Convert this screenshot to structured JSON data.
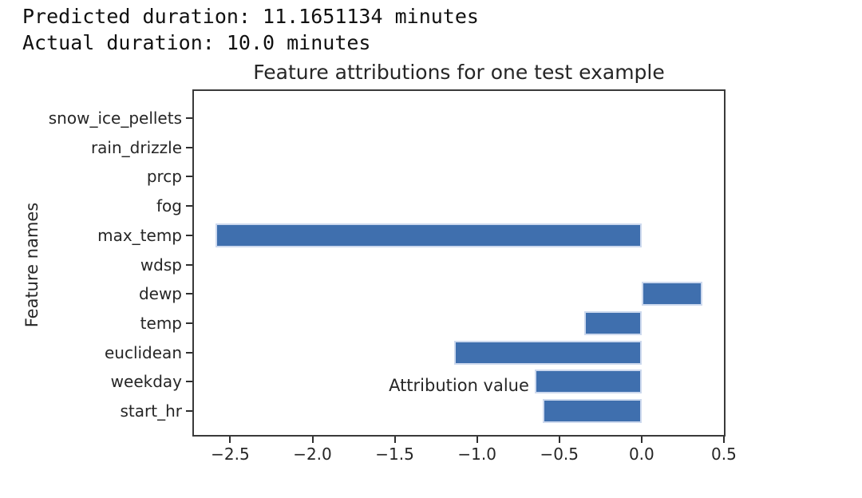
{
  "header": {
    "line1": "Predicted duration: 11.1651134 minutes",
    "line2": "Actual duration: 10.0 minutes"
  },
  "chart_data": {
    "type": "bar",
    "orientation": "horizontal",
    "title": "Feature attributions for one test example",
    "xlabel": "Attribution value",
    "ylabel": "Feature names",
    "categories_top_to_bottom": [
      "snow_ice_pellets",
      "rain_drizzle",
      "prcp",
      "fog",
      "max_temp",
      "wdsp",
      "dewp",
      "temp",
      "euclidean",
      "weekday",
      "start_hr"
    ],
    "values": [
      0,
      0,
      0,
      0,
      -2.59,
      0,
      0.37,
      -0.35,
      -1.14,
      -0.65,
      -0.6
    ],
    "xlim": [
      -2.73,
      0.51
    ],
    "xticks": [
      -2.5,
      -2.0,
      -1.5,
      -1.0,
      -0.5,
      0.0,
      0.5
    ],
    "xtick_labels": [
      "−2.5",
      "−2.0",
      "−1.5",
      "−1.0",
      "−0.5",
      "0.0",
      "0.5"
    ],
    "grid": false,
    "legend": null,
    "bar_color": "#3f6fae",
    "bar_edge_color": "#cdd9ee",
    "spine_color": "#3a3a3a",
    "text_color": "#262626"
  }
}
